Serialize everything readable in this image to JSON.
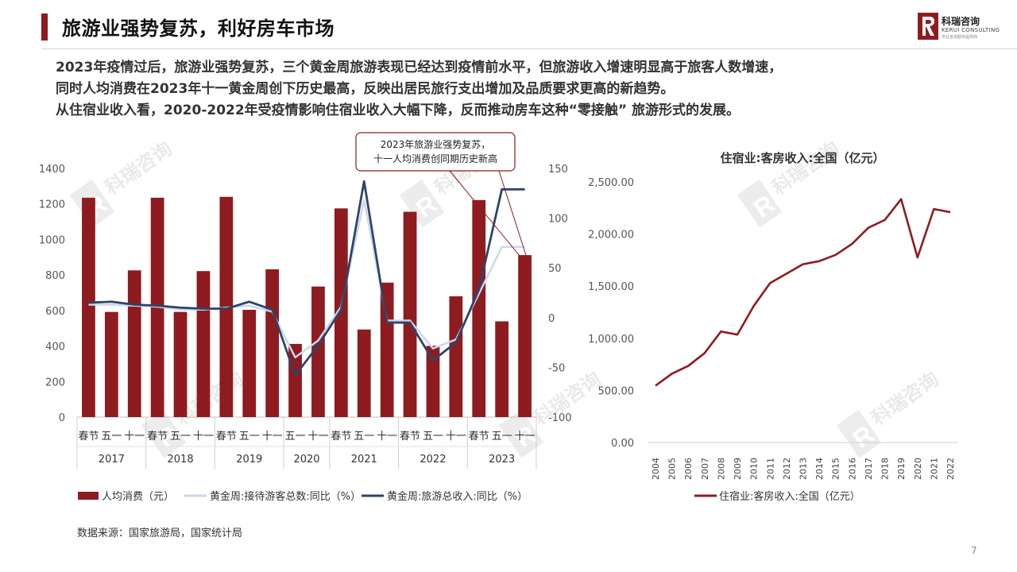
{
  "header": {
    "title": "旅游业强势复苏，利好房车市场",
    "logo": {
      "name_cn": "科瑞咨询",
      "name_en": "KERUI CONSULTING",
      "tagline": "专业咨询服务提供商",
      "mark": "R",
      "brand_color": "#8e1b1f"
    }
  },
  "paragraphs": [
    "2023年疫情过后，旅游业强势复苏，三个黄金周旅游表现已经达到疫情前水平，但旅游收入增速明显高于旅客人数增速，",
    "同时人均消费在2023年十一黄金周创下历史最高，反映出居民旅行支出增加及品质要求更高的新趋势。",
    "从住宿业收入看，2020-2022年受疫情影响住宿业收入大幅下降，反而推动房车这种“零接触” 旅游形式的发展。"
  ],
  "source": "数据来源：国家旅游局，国家统计局",
  "page_number": "7",
  "watermark_text": "科瑞咨询",
  "chart_data": [
    {
      "type": "bar",
      "title": "",
      "callout": [
        "2023年旅游业强势复苏，",
        "十一人均消费创同期历史新高"
      ],
      "categories": [
        "春节",
        "五一",
        "十一",
        "春节",
        "五一",
        "十一",
        "春节",
        "五一",
        "十一",
        "五一",
        "十一",
        "春节",
        "五一",
        "十一",
        "春节",
        "五一",
        "十一",
        "春节",
        "五一",
        "十一"
      ],
      "groups": [
        {
          "label": "2017",
          "count": 3
        },
        {
          "label": "2018",
          "count": 3
        },
        {
          "label": "2019",
          "count": 3
        },
        {
          "label": "2020",
          "count": 2
        },
        {
          "label": "2021",
          "count": 3
        },
        {
          "label": "2022",
          "count": 3
        },
        {
          "label": "2023",
          "count": 3
        }
      ],
      "left_axis": {
        "ylim": [
          0,
          1400
        ],
        "ticks": [
          "0",
          "200",
          "400",
          "600",
          "800",
          "1000",
          "1200",
          "1400"
        ]
      },
      "right_axis": {
        "ylim": [
          -100,
          150
        ],
        "ticks": [
          "-100",
          "-50",
          "0",
          "50",
          "100",
          "150"
        ]
      },
      "series": [
        {
          "name": "人均消费（元）",
          "kind": "bar",
          "axis": "left",
          "color": "#8e1b1f",
          "values": [
            1235,
            592,
            826,
            1235,
            592,
            822,
            1240,
            604,
            832,
            412,
            735,
            1175,
            493,
            757,
            1156,
            401,
            680,
            1222,
            539,
            912
          ]
        },
        {
          "name": "黄金周:接待游客总数:同比（%）",
          "kind": "line",
          "axis": "right",
          "color": "#c9d9ee",
          "values": [
            13,
            13,
            12,
            11,
            8,
            8,
            10,
            12,
            6,
            -40,
            -23,
            11,
            118,
            -3,
            -3,
            -31,
            -22,
            24,
            71,
            71
          ]
        },
        {
          "name": "黄金周:旅游总收入:同比（%）",
          "kind": "line",
          "axis": "right",
          "color": "#2f4467",
          "values": [
            15,
            16,
            13,
            12,
            10,
            9,
            9,
            16,
            8,
            -58,
            -28,
            8,
            137,
            -5,
            -5,
            -43,
            -25,
            28,
            129,
            129
          ]
        }
      ]
    },
    {
      "type": "line",
      "title": "住宿业:客房收入:全国（亿元）",
      "x": [
        "2004",
        "2005",
        "2006",
        "2007",
        "2008",
        "2009",
        "2010",
        "2011",
        "2012",
        "2013",
        "2014",
        "2015",
        "2016",
        "2017",
        "2018",
        "2019",
        "2020",
        "2021",
        "2022"
      ],
      "ylim": [
        0,
        2500
      ],
      "yticks": [
        "0.00",
        "500.00",
        "1,000.00",
        "1,500.00",
        "2,000.00",
        "2,500.00"
      ],
      "series": [
        {
          "name": "住宿业:客房收入:全国（亿元）",
          "color": "#8e1b1f",
          "values": [
            545,
            660,
            735,
            858,
            1065,
            1035,
            1310,
            1530,
            1620,
            1710,
            1740,
            1800,
            1905,
            2060,
            2135,
            2335,
            1775,
            2240,
            2210
          ]
        }
      ]
    }
  ]
}
